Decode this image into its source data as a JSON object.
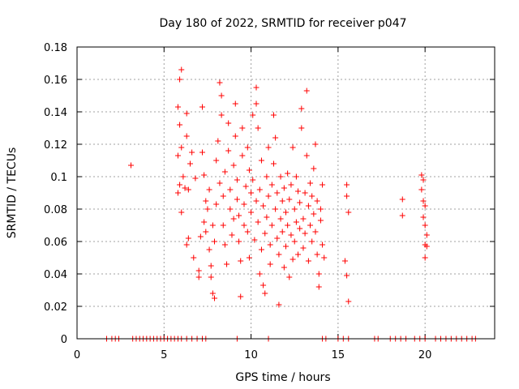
{
  "chart_data": {
    "type": "scatter",
    "title": "Day 180 of 2022, SRMTID for receiver p047",
    "xlabel": "GPS time / hours",
    "ylabel": "SRMTID / TECUs",
    "xlim": [
      0,
      24
    ],
    "ylim": [
      0,
      0.18
    ],
    "x_ticks": [
      0,
      5,
      10,
      15,
      20
    ],
    "x_tick_labels": [
      "0",
      "5",
      "10",
      "15",
      "20"
    ],
    "y_ticks": [
      0,
      0.02,
      0.04,
      0.06,
      0.08,
      0.1,
      0.12,
      0.14,
      0.16,
      0.18
    ],
    "y_tick_labels": [
      "0",
      "0.02",
      "0.04",
      "0.06",
      "0.08",
      "0.1",
      "0.12",
      "0.14",
      "0.16",
      "0.18"
    ],
    "grid": true,
    "marker": "+",
    "marker_color": "#ff0000",
    "series": [
      {
        "name": "SRMTID",
        "points": [
          [
            3.1,
            0.107
          ],
          [
            5.8,
            0.143
          ],
          [
            5.9,
            0.16
          ],
          [
            6.0,
            0.166
          ],
          [
            5.9,
            0.132
          ],
          [
            5.8,
            0.113
          ],
          [
            6.0,
            0.118
          ],
          [
            5.9,
            0.095
          ],
          [
            5.8,
            0.09
          ],
          [
            6.1,
            0.1
          ],
          [
            6.0,
            0.078
          ],
          [
            6.2,
            0.093
          ],
          [
            6.3,
            0.139
          ],
          [
            6.3,
            0.125
          ],
          [
            6.4,
            0.062
          ],
          [
            6.3,
            0.058
          ],
          [
            6.5,
            0.108
          ],
          [
            6.4,
            0.092
          ],
          [
            6.6,
            0.115
          ],
          [
            6.7,
            0.05
          ],
          [
            6.8,
            0.099
          ],
          [
            7.0,
            0.042
          ],
          [
            7.0,
            0.038
          ],
          [
            7.1,
            0.063
          ],
          [
            7.2,
            0.143
          ],
          [
            7.2,
            0.115
          ],
          [
            7.3,
            0.101
          ],
          [
            7.4,
            0.085
          ],
          [
            7.3,
            0.072
          ],
          [
            7.5,
            0.08
          ],
          [
            7.4,
            0.066
          ],
          [
            7.6,
            0.092
          ],
          [
            7.6,
            0.055
          ],
          [
            7.7,
            0.045
          ],
          [
            7.7,
            0.038
          ],
          [
            7.8,
            0.028
          ],
          [
            7.9,
            0.025
          ],
          [
            7.8,
            0.07
          ],
          [
            7.9,
            0.06
          ],
          [
            8.0,
            0.083
          ],
          [
            8.0,
            0.11
          ],
          [
            8.1,
            0.122
          ],
          [
            8.2,
            0.096
          ],
          [
            8.2,
            0.158
          ],
          [
            8.3,
            0.15
          ],
          [
            8.3,
            0.138
          ],
          [
            8.4,
            0.088
          ],
          [
            8.4,
            0.07
          ],
          [
            8.5,
            0.103
          ],
          [
            8.5,
            0.058
          ],
          [
            8.6,
            0.046
          ],
          [
            8.7,
            0.133
          ],
          [
            8.7,
            0.116
          ],
          [
            8.8,
            0.08
          ],
          [
            8.8,
            0.092
          ],
          [
            8.9,
            0.064
          ],
          [
            9.0,
            0.074
          ],
          [
            9.0,
            0.107
          ],
          [
            9.1,
            0.145
          ],
          [
            9.1,
            0.125
          ],
          [
            9.2,
            0.086
          ],
          [
            9.2,
            0.098
          ],
          [
            9.3,
            0.06
          ],
          [
            9.3,
            0.076
          ],
          [
            9.4,
            0.026
          ],
          [
            9.4,
            0.048
          ],
          [
            9.5,
            0.113
          ],
          [
            9.5,
            0.13
          ],
          [
            9.6,
            0.07
          ],
          [
            9.6,
            0.083
          ],
          [
            9.7,
            0.094
          ],
          [
            9.8,
            0.118
          ],
          [
            9.8,
            0.066
          ],
          [
            9.9,
            0.05
          ],
          [
            9.9,
            0.104
          ],
          [
            10.0,
            0.09
          ],
          [
            10.0,
            0.078
          ],
          [
            10.1,
            0.138
          ],
          [
            10.1,
            0.098
          ],
          [
            10.2,
            0.061
          ],
          [
            10.3,
            0.085
          ],
          [
            10.3,
            0.155
          ],
          [
            10.3,
            0.145
          ],
          [
            10.4,
            0.13
          ],
          [
            10.4,
            0.072
          ],
          [
            10.5,
            0.092
          ],
          [
            10.5,
            0.04
          ],
          [
            10.6,
            0.055
          ],
          [
            10.6,
            0.11
          ],
          [
            10.7,
            0.082
          ],
          [
            10.7,
            0.033
          ],
          [
            10.8,
            0.028
          ],
          [
            10.8,
            0.065
          ],
          [
            10.9,
            0.1
          ],
          [
            10.9,
            0.075
          ],
          [
            11.0,
            0.118
          ],
          [
            11.0,
            0.088
          ],
          [
            11.1,
            0.058
          ],
          [
            11.1,
            0.046
          ],
          [
            11.2,
            0.095
          ],
          [
            11.2,
            0.07
          ],
          [
            11.3,
            0.108
          ],
          [
            11.3,
            0.138
          ],
          [
            11.4,
            0.124
          ],
          [
            11.4,
            0.08
          ],
          [
            11.5,
            0.062
          ],
          [
            11.5,
            0.09
          ],
          [
            11.6,
            0.021
          ],
          [
            11.6,
            0.052
          ],
          [
            11.7,
            0.074
          ],
          [
            11.7,
            0.1
          ],
          [
            11.8,
            0.085
          ],
          [
            11.8,
            0.066
          ],
          [
            11.9,
            0.044
          ],
          [
            11.9,
            0.093
          ],
          [
            12.0,
            0.078
          ],
          [
            12.0,
            0.057
          ],
          [
            12.1,
            0.102
          ],
          [
            12.1,
            0.07
          ],
          [
            12.2,
            0.038
          ],
          [
            12.2,
            0.086
          ],
          [
            12.3,
            0.064
          ],
          [
            12.3,
            0.095
          ],
          [
            12.4,
            0.049
          ],
          [
            12.4,
            0.118
          ],
          [
            12.5,
            0.08
          ],
          [
            12.5,
            0.06
          ],
          [
            12.6,
            0.072
          ],
          [
            12.6,
            0.1
          ],
          [
            12.7,
            0.091
          ],
          [
            12.7,
            0.052
          ],
          [
            12.8,
            0.068
          ],
          [
            12.8,
            0.084
          ],
          [
            12.9,
            0.142
          ],
          [
            12.9,
            0.13
          ],
          [
            13.0,
            0.074
          ],
          [
            13.0,
            0.056
          ],
          [
            13.1,
            0.09
          ],
          [
            13.1,
            0.065
          ],
          [
            13.2,
            0.153
          ],
          [
            13.2,
            0.113
          ],
          [
            13.3,
            0.082
          ],
          [
            13.3,
            0.048
          ],
          [
            13.4,
            0.096
          ],
          [
            13.4,
            0.07
          ],
          [
            13.5,
            0.06
          ],
          [
            13.5,
            0.088
          ],
          [
            13.6,
            0.105
          ],
          [
            13.6,
            0.077
          ],
          [
            13.7,
            0.12
          ],
          [
            13.7,
            0.066
          ],
          [
            13.8,
            0.085
          ],
          [
            13.8,
            0.052
          ],
          [
            13.9,
            0.04
          ],
          [
            13.9,
            0.032
          ],
          [
            14.0,
            0.073
          ],
          [
            14.0,
            0.08
          ],
          [
            14.1,
            0.058
          ],
          [
            14.1,
            0.095
          ],
          [
            14.2,
            0.05
          ],
          [
            15.5,
            0.095
          ],
          [
            15.5,
            0.088
          ],
          [
            15.6,
            0.078
          ],
          [
            15.4,
            0.048
          ],
          [
            15.5,
            0.039
          ],
          [
            15.6,
            0.023
          ],
          [
            18.7,
            0.086
          ],
          [
            18.7,
            0.076
          ],
          [
            19.8,
            0.101
          ],
          [
            19.9,
            0.098
          ],
          [
            19.8,
            0.092
          ],
          [
            19.9,
            0.085
          ],
          [
            20.0,
            0.082
          ],
          [
            19.9,
            0.075
          ],
          [
            20.0,
            0.07
          ],
          [
            20.1,
            0.064
          ],
          [
            20.0,
            0.058
          ],
          [
            20.1,
            0.057
          ],
          [
            20.0,
            0.05
          ],
          [
            1.7,
            0.0
          ],
          [
            2.0,
            0.0
          ],
          [
            2.2,
            0.0
          ],
          [
            2.4,
            0.0
          ],
          [
            3.2,
            0.0
          ],
          [
            3.4,
            0.0
          ],
          [
            3.6,
            0.0
          ],
          [
            3.8,
            0.0
          ],
          [
            4.0,
            0.0
          ],
          [
            4.2,
            0.0
          ],
          [
            4.4,
            0.0
          ],
          [
            4.6,
            0.0
          ],
          [
            4.8,
            0.0
          ],
          [
            5.0,
            0.0
          ],
          [
            5.2,
            0.0
          ],
          [
            5.4,
            0.0
          ],
          [
            5.6,
            0.0
          ],
          [
            5.8,
            0.0
          ],
          [
            6.0,
            0.0
          ],
          [
            6.3,
            0.0
          ],
          [
            6.6,
            0.0
          ],
          [
            6.9,
            0.0
          ],
          [
            7.2,
            0.0
          ],
          [
            7.4,
            0.0
          ],
          [
            9.2,
            0.0
          ],
          [
            11.0,
            0.0
          ],
          [
            14.1,
            0.0
          ],
          [
            14.3,
            0.0
          ],
          [
            15.0,
            0.0
          ],
          [
            15.3,
            0.0
          ],
          [
            15.6,
            0.0
          ],
          [
            17.1,
            0.0
          ],
          [
            17.3,
            0.0
          ],
          [
            18.0,
            0.0
          ],
          [
            18.3,
            0.0
          ],
          [
            18.6,
            0.0
          ],
          [
            18.9,
            0.0
          ],
          [
            19.4,
            0.0
          ],
          [
            19.7,
            0.0
          ],
          [
            20.0,
            0.0
          ],
          [
            20.6,
            0.0
          ],
          [
            20.9,
            0.0
          ],
          [
            21.2,
            0.0
          ],
          [
            21.5,
            0.0
          ],
          [
            21.8,
            0.0
          ],
          [
            22.1,
            0.0
          ],
          [
            22.4,
            0.0
          ],
          [
            22.7,
            0.0
          ],
          [
            22.9,
            0.0
          ]
        ]
      }
    ]
  }
}
